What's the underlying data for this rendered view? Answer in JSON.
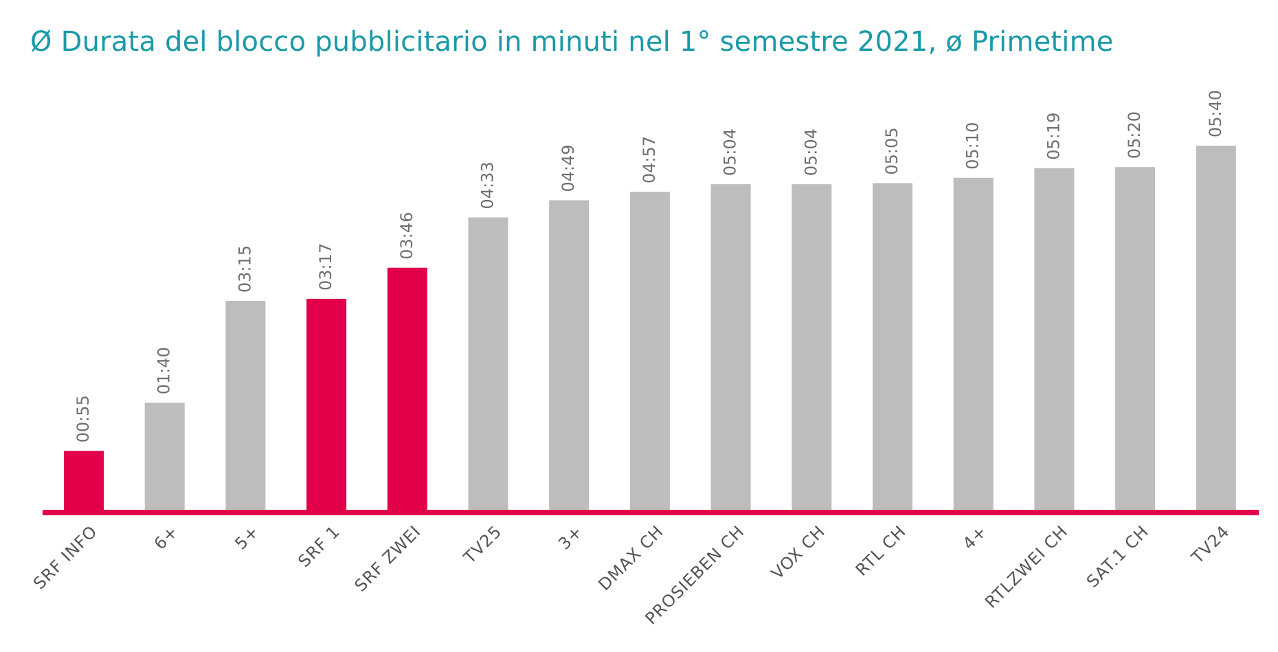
{
  "chart_data": {
    "type": "bar",
    "title": "Ø Durata del blocco pubblicitario in minuti nel 1° semestre 2021, ø Primetime",
    "xlabel": "",
    "ylabel": "",
    "categories": [
      "SRF INFO",
      "6+",
      "5+",
      "SRF 1",
      "SRF ZWEI",
      "TV25",
      "3+",
      "DMAX CH",
      "PROSIEBEN CH",
      "VOX CH",
      "RTL CH",
      "4+",
      "RTLZWEI CH",
      "SAT.1 CH",
      "TV24"
    ],
    "values": [
      55,
      100,
      195,
      197,
      226,
      273,
      289,
      297,
      304,
      304,
      305,
      310,
      319,
      320,
      340
    ],
    "value_labels": [
      "00:55",
      "01:40",
      "03:15",
      "03:17",
      "03:46",
      "04:33",
      "04:49",
      "04:57",
      "05:04",
      "05:04",
      "05:05",
      "05:10",
      "05:19",
      "05:20",
      "05:40"
    ],
    "highlighted": [
      true,
      false,
      false,
      true,
      true,
      false,
      false,
      false,
      false,
      false,
      false,
      false,
      false,
      false,
      false
    ],
    "ylim": [
      0,
      340
    ],
    "grid": false,
    "legend": "none",
    "colors": {
      "highlight": "#e2004a",
      "default": "#bdbdbd",
      "baseline": "#e2004a",
      "title": "#1a9aa8",
      "value_label": "#6f6f6f",
      "category_label": "#555555"
    }
  }
}
